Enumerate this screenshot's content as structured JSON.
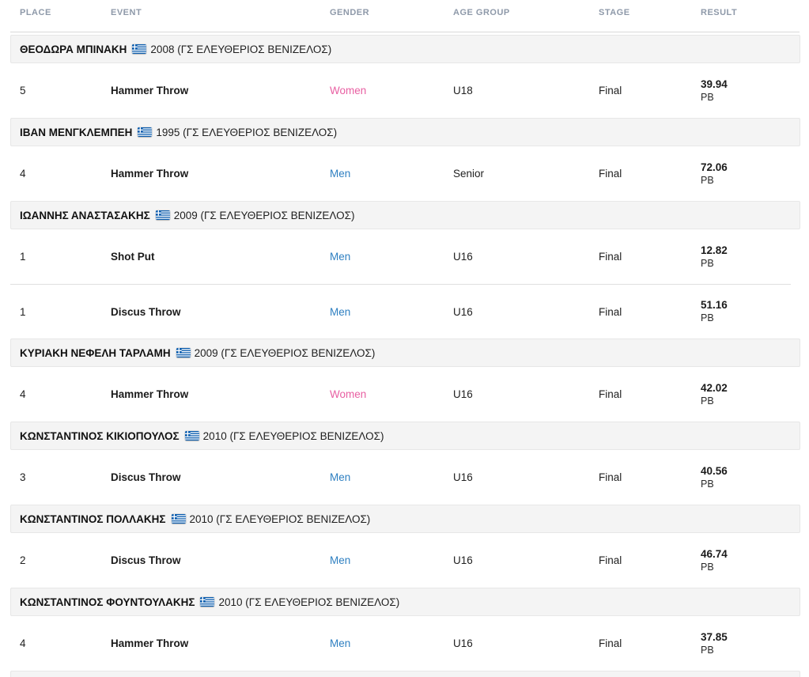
{
  "table": {
    "columns": [
      {
        "key": "place",
        "label": "PLACE"
      },
      {
        "key": "event",
        "label": "EVENT"
      },
      {
        "key": "gender",
        "label": "GENDER"
      },
      {
        "key": "age_group",
        "label": "AGE GROUP"
      },
      {
        "key": "stage",
        "label": "STAGE"
      },
      {
        "key": "result",
        "label": "RESULT"
      }
    ],
    "sections": [
      {
        "athlete": "ΘΕΟΔΩΡΑ ΜΠΙΝΑΚΗ",
        "flag": "greece",
        "details": "2008 (ΓΣ ΕΛΕΥΘΕΡΙΟΣ ΒΕΝΙΖΕΛΟΣ)",
        "rows": [
          {
            "place": "5",
            "event": "Hammer Throw",
            "gender": "Women",
            "age_group": "U18",
            "stage": "Final",
            "result": "39.94",
            "result_note": "PB"
          }
        ]
      },
      {
        "athlete": "ΙΒΑΝ ΜΕΝΓΚΛΕΜΠΕΗ",
        "flag": "greece",
        "details": "1995 (ΓΣ ΕΛΕΥΘΕΡΙΟΣ ΒΕΝΙΖΕΛΟΣ)",
        "rows": [
          {
            "place": "4",
            "event": "Hammer Throw",
            "gender": "Men",
            "age_group": "Senior",
            "stage": "Final",
            "result": "72.06",
            "result_note": "PB"
          }
        ]
      },
      {
        "athlete": "ΙΩΑΝΝΗΣ ΑΝΑΣΤΑΣΑΚΗΣ",
        "flag": "greece",
        "details": "2009 (ΓΣ ΕΛΕΥΘΕΡΙΟΣ ΒΕΝΙΖΕΛΟΣ)",
        "rows": [
          {
            "place": "1",
            "event": "Shot Put",
            "gender": "Men",
            "age_group": "U16",
            "stage": "Final",
            "result": "12.82",
            "result_note": "PB"
          },
          {
            "place": "1",
            "event": "Discus Throw",
            "gender": "Men",
            "age_group": "U16",
            "stage": "Final",
            "result": "51.16",
            "result_note": "PB"
          }
        ]
      },
      {
        "athlete": "ΚΥΡΙΑΚΗ ΝΕΦΕΛΗ ΤΑΡΛΑΜΗ",
        "flag": "greece",
        "details": "2009 (ΓΣ ΕΛΕΥΘΕΡΙΟΣ ΒΕΝΙΖΕΛΟΣ)",
        "rows": [
          {
            "place": "4",
            "event": "Hammer Throw",
            "gender": "Women",
            "age_group": "U16",
            "stage": "Final",
            "result": "42.02",
            "result_note": "PB"
          }
        ]
      },
      {
        "athlete": "ΚΩΝΣΤΑΝΤΙΝΟΣ ΚΙΚΙΟΠΟΥΛΟΣ",
        "flag": "greece",
        "details": "2010 (ΓΣ ΕΛΕΥΘΕΡΙΟΣ ΒΕΝΙΖΕΛΟΣ)",
        "rows": [
          {
            "place": "3",
            "event": "Discus Throw",
            "gender": "Men",
            "age_group": "U16",
            "stage": "Final",
            "result": "40.56",
            "result_note": "PB"
          }
        ]
      },
      {
        "athlete": "ΚΩΝΣΤΑΝΤΙΝΟΣ ΠΟΛΛΑΚΗΣ",
        "flag": "greece",
        "details": "2010 (ΓΣ ΕΛΕΥΘΕΡΙΟΣ ΒΕΝΙΖΕΛΟΣ)",
        "rows": [
          {
            "place": "2",
            "event": "Discus Throw",
            "gender": "Men",
            "age_group": "U16",
            "stage": "Final",
            "result": "46.74",
            "result_note": "PB"
          }
        ]
      },
      {
        "athlete": "ΚΩΝΣΤΑΝΤΙΝΟΣ ΦΟΥΝΤΟΥΛΑΚΗΣ",
        "flag": "greece",
        "details": "2010 (ΓΣ ΕΛΕΥΘΕΡΙΟΣ ΒΕΝΙΖΕΛΟΣ)",
        "rows": [
          {
            "place": "4",
            "event": "Hammer Throw",
            "gender": "Men",
            "age_group": "U16",
            "stage": "Final",
            "result": "37.85",
            "result_note": "PB"
          }
        ]
      }
    ],
    "partial_next_section": true
  },
  "colors": {
    "men": "#2e7fc1",
    "women": "#e85fa2",
    "flag_blue": "#0d5eaf",
    "header_text": "#8e99a9",
    "section_bg": "#f4f4f4"
  }
}
